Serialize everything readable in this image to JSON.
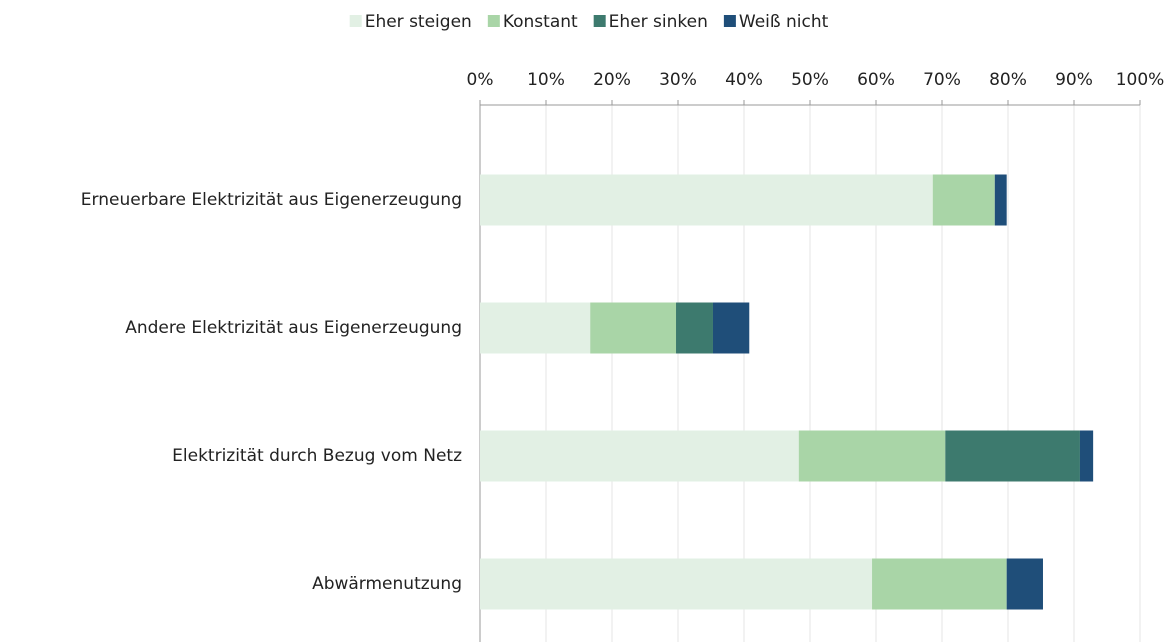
{
  "chart_data": {
    "type": "stacked_bar_horizontal",
    "categories": [
      "Erneuerbare Elektrizität aus Eigenerzeugung",
      "Andere Elektrizität aus Eigenerzeugung",
      "Elektrizität durch Bezug vom Netz",
      "Abwärmenutzung"
    ],
    "series": [
      {
        "name": "Eher steigen",
        "color": "#e2f0e4",
        "values": [
          68.6,
          16.7,
          48.3,
          59.4
        ]
      },
      {
        "name": "Konstant",
        "color": "#a9d5a7",
        "values": [
          9.4,
          13.0,
          22.2,
          20.4
        ]
      },
      {
        "name": "Eher sinken",
        "color": "#3d7a6e",
        "values": [
          0,
          5.6,
          20.4,
          0
        ]
      },
      {
        "name": "Weiß nicht",
        "color": "#1f4e79",
        "values": [
          1.8,
          5.5,
          2.0,
          5.5
        ]
      }
    ],
    "xlim": [
      0,
      100
    ],
    "xticks": [
      {
        "value": 0,
        "label": "0%"
      },
      {
        "value": 10,
        "label": "10%"
      },
      {
        "value": 20,
        "label": "20%"
      },
      {
        "value": 30,
        "label": "30%"
      },
      {
        "value": 40,
        "label": "40%"
      },
      {
        "value": 50,
        "label": "50%"
      },
      {
        "value": 60,
        "label": "60%"
      },
      {
        "value": 70,
        "label": "70%"
      },
      {
        "value": 80,
        "label": "80%"
      },
      {
        "value": 90,
        "label": "90%"
      },
      {
        "value": 100,
        "label": "100%"
      }
    ],
    "grid": true,
    "legend": "top"
  }
}
